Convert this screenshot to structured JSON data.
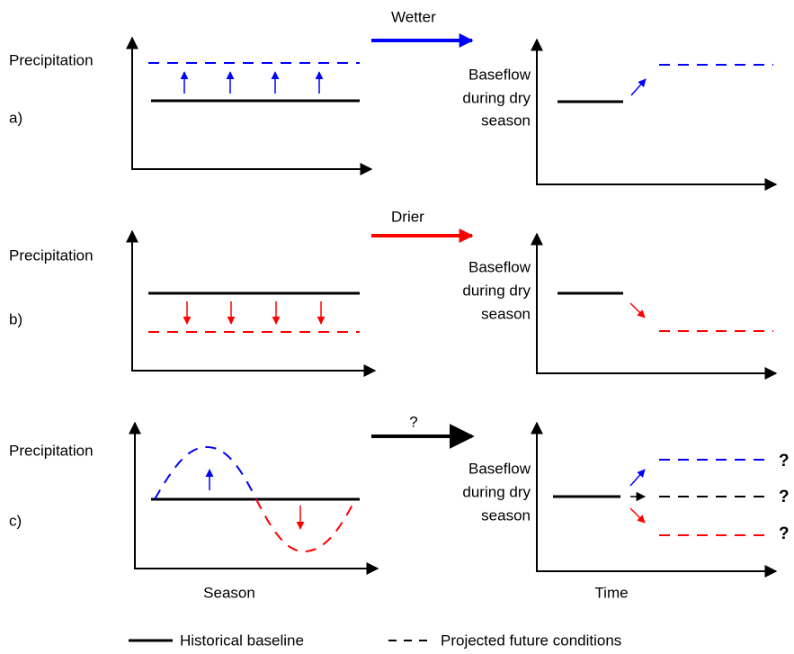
{
  "panels": [
    {
      "label": "a)",
      "transition": "Wetter",
      "left_axis_label": "Precipitation",
      "right_axis_label": [
        "Baseflow",
        "during dry",
        "season"
      ]
    },
    {
      "label": "b)",
      "transition": "Drier",
      "left_axis_label": "Precipitation",
      "right_axis_label": [
        "Baseflow",
        "during dry",
        "season"
      ]
    },
    {
      "label": "c)",
      "transition": "?",
      "left_axis_label": "Precipitation",
      "right_axis_label": [
        "Baseflow",
        "during dry",
        "season"
      ],
      "outcomes": [
        "?",
        "?",
        "?"
      ]
    }
  ],
  "x_axis_labels": {
    "left": "Season",
    "right": "Time"
  },
  "legend": {
    "solid": "Historical baseline",
    "dashed": "Projected future conditions"
  }
}
